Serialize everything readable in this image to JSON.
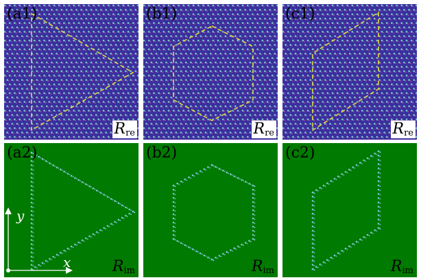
{
  "panels": [
    {
      "id": "a1",
      "label": "(a1)",
      "row": "re",
      "shape": "triangle"
    },
    {
      "id": "b1",
      "label": "(b1)",
      "row": "re",
      "shape": "hexagon"
    },
    {
      "id": "c1",
      "label": "(c1)",
      "row": "re",
      "shape": "parallelogram"
    },
    {
      "id": "a2",
      "label": "(a2)",
      "row": "im",
      "shape": "triangle"
    },
    {
      "id": "b2",
      "label": "(b2)",
      "row": "im",
      "shape": "hexagon"
    },
    {
      "id": "c2",
      "label": "(c2)",
      "row": "im",
      "shape": "parallelogram"
    }
  ],
  "tags": {
    "re": {
      "symbol": "R",
      "subscript": "re"
    },
    "im": {
      "symbol": "R",
      "subscript": "im"
    }
  },
  "axes": {
    "x_label": "x",
    "y_label": "y"
  },
  "colors": {
    "lattice_bg": "#3a2f9e",
    "lattice_dot": "#7dc4c8",
    "outline_re": "#e6dc3c",
    "field_im": "#007a00",
    "edge_im": "#7ec8d8",
    "axis": "#ffffff"
  }
}
